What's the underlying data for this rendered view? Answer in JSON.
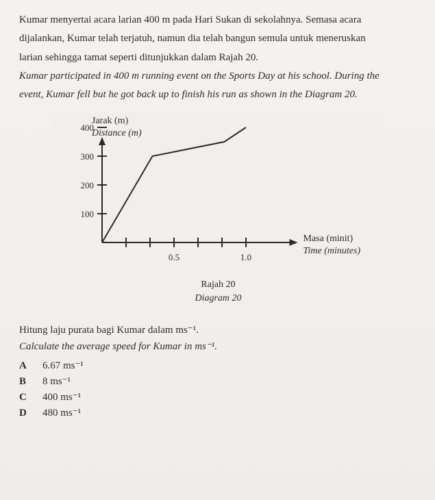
{
  "question": {
    "para_ms_1": "Kumar menyertai acara larian 400 m pada Hari Sukan di sekolahnya. Semasa acara",
    "para_ms_2": "dijalankan, Kumar telah terjatuh, namun dia telah bangun semula untuk meneruskan",
    "para_ms_3": "larian sehingga tamat seperti ditunjukkan dalam Rajah 20.",
    "para_en_1": "Kumar participated in 400 m running event on the Sports Day at his school. During the",
    "para_en_2": "event, Kumar fell but he got back up to finish his run as shown in the Diagram 20."
  },
  "chart": {
    "type": "line",
    "y_label_ms": "Jarak (m)",
    "y_label_en": "Distance (m)",
    "x_label_ms": "Masa (minit)",
    "x_label_en": "Time (minutes)",
    "y_ticks": [
      100,
      200,
      300,
      400
    ],
    "x_tick_labels": [
      "0.5",
      "1.0"
    ],
    "x_tick_count": 6,
    "x_tick_step": 35,
    "series": {
      "points": [
        {
          "t": 0.0,
          "d": 0
        },
        {
          "t": 0.35,
          "d": 300
        },
        {
          "t": 0.85,
          "d": 350
        },
        {
          "t": 1.0,
          "d": 400
        }
      ],
      "color": "#2d2a28",
      "width": 2
    },
    "axis_color": "#2d2a28",
    "axis_width": 2,
    "background": "#f1efed",
    "plot": {
      "origin_x": 70,
      "origin_y": 190,
      "x_unit": 210,
      "y_unit": 0.42
    },
    "label_fontsize": 14,
    "tick_fontsize": 13,
    "tick_len": 7
  },
  "caption": {
    "ms": "Rajah 20",
    "en": "Diagram 20"
  },
  "prompt": {
    "ms": "Hitung laju purata bagi Kumar dalam ms⁻¹.",
    "en": "Calculate the average speed for Kumar in  ms⁻¹."
  },
  "options": [
    {
      "letter": "A",
      "text": "6.67 ms⁻¹"
    },
    {
      "letter": "B",
      "text": "8 ms⁻¹"
    },
    {
      "letter": "C",
      "text": "400 ms⁻¹"
    },
    {
      "letter": "D",
      "text": "480 ms⁻¹"
    }
  ]
}
